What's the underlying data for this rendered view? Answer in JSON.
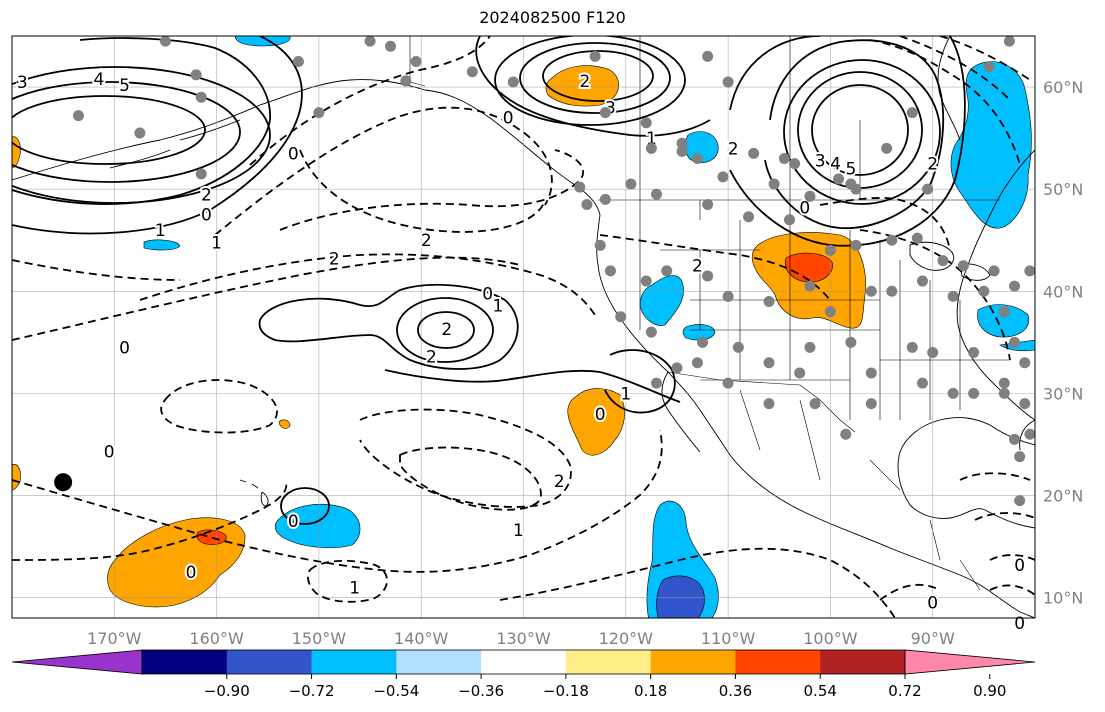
{
  "title": "2024082500 F120",
  "map": {
    "projection": "cylindrical",
    "lon_range": [
      -180,
      -80
    ],
    "lat_range": [
      8,
      65
    ],
    "lon_ticks": [
      {
        "lon": -170,
        "label": "170°W"
      },
      {
        "lon": -160,
        "label": "160°W"
      },
      {
        "lon": -150,
        "label": "150°W"
      },
      {
        "lon": -140,
        "label": "140°W"
      },
      {
        "lon": -130,
        "label": "130°W"
      },
      {
        "lon": -120,
        "label": "120°W"
      },
      {
        "lon": -110,
        "label": "110°W"
      },
      {
        "lon": -100,
        "label": "100°W"
      },
      {
        "lon": -90,
        "label": "90°W"
      }
    ],
    "lat_ticks": [
      {
        "lat": 10,
        "label": "10°N"
      },
      {
        "lat": 20,
        "label": "20°N"
      },
      {
        "lat": 30,
        "label": "30°N"
      },
      {
        "lat": 40,
        "label": "40°N"
      },
      {
        "lat": 50,
        "label": "50°N"
      },
      {
        "lat": 60,
        "label": "60°N"
      }
    ],
    "grid": true,
    "tick_label_color": "#808080"
  },
  "colorbar": {
    "extend": "both",
    "colors": [
      "#9933cc",
      "#000080",
      "#3355cc",
      "#00bfff",
      "#afe0ff",
      "#ffffff",
      "#ffee88",
      "#ffa500",
      "#ff4500",
      "#b22222",
      "#ff88aa"
    ],
    "tick_labels": [
      "−0.90",
      "−0.72",
      "−0.54",
      "−0.36",
      "−0.18",
      "0.18",
      "0.36",
      "0.54",
      "0.72",
      "0.90"
    ]
  },
  "contour_labels": [
    {
      "text": "3",
      "lon": -179,
      "lat": 60.5
    },
    {
      "text": "4",
      "lon": -171.5,
      "lat": 60.8
    },
    {
      "text": "5",
      "lon": -169,
      "lat": 60.2
    },
    {
      "text": "2",
      "lon": -161,
      "lat": 49.5
    },
    {
      "text": "1",
      "lon": -165.5,
      "lat": 46
    },
    {
      "text": "0",
      "lon": -161,
      "lat": 47.5
    },
    {
      "text": "1",
      "lon": -160,
      "lat": 44.8
    },
    {
      "text": "0",
      "lon": -152.5,
      "lat": 53.5
    },
    {
      "text": "0",
      "lon": -169,
      "lat": 34.5
    },
    {
      "text": "2",
      "lon": -139.5,
      "lat": 45
    },
    {
      "text": "2",
      "lon": -148.5,
      "lat": 43.2
    },
    {
      "text": "0",
      "lon": -133.5,
      "lat": 39.8
    },
    {
      "text": "1",
      "lon": -132.5,
      "lat": 38.6
    },
    {
      "text": "2",
      "lon": -137.5,
      "lat": 36.3
    },
    {
      "text": "2",
      "lon": -139,
      "lat": 33.6
    },
    {
      "text": "0",
      "lon": -131.5,
      "lat": 57
    },
    {
      "text": "2",
      "lon": -124,
      "lat": 60.6
    },
    {
      "text": "3",
      "lon": -121.5,
      "lat": 58
    },
    {
      "text": "1",
      "lon": -117.5,
      "lat": 55
    },
    {
      "text": "3",
      "lon": -101,
      "lat": 52.8
    },
    {
      "text": "4",
      "lon": -99.5,
      "lat": 52.5
    },
    {
      "text": "5",
      "lon": -98,
      "lat": 52
    },
    {
      "text": "2",
      "lon": -109.5,
      "lat": 54
    },
    {
      "text": "2",
      "lon": -90,
      "lat": 52.5
    },
    {
      "text": "0",
      "lon": -102.5,
      "lat": 48.2
    },
    {
      "text": "2",
      "lon": -113,
      "lat": 42.5
    },
    {
      "text": "1",
      "lon": -120,
      "lat": 30
    },
    {
      "text": "0",
      "lon": -122.5,
      "lat": 28
    },
    {
      "text": "0",
      "lon": -170.5,
      "lat": 24.3
    },
    {
      "text": "2",
      "lon": -126.5,
      "lat": 21.4
    },
    {
      "text": "1",
      "lon": -130.5,
      "lat": 16.6
    },
    {
      "text": "0",
      "lon": -162.5,
      "lat": 12.5
    },
    {
      "text": "0",
      "lon": -152.5,
      "lat": 17.5
    },
    {
      "text": "1",
      "lon": -146.5,
      "lat": 11
    },
    {
      "text": "0",
      "lon": -90,
      "lat": 9.5
    },
    {
      "text": "0",
      "lon": -81.5,
      "lat": 13.2
    },
    {
      "text": "0",
      "lon": -81.5,
      "lat": 7.5
    }
  ],
  "stations": [
    [
      -174,
      66
    ],
    [
      -165,
      64.5
    ],
    [
      -162,
      61.2
    ],
    [
      -161.5,
      59
    ],
    [
      -173.5,
      57.2
    ],
    [
      -167.5,
      55.5
    ],
    [
      -161.5,
      51.5
    ],
    [
      -152,
      62.5
    ],
    [
      -145,
      64.5
    ],
    [
      -143,
      64
    ],
    [
      -140.5,
      62.5
    ],
    [
      -135,
      61.5
    ],
    [
      -150,
      57.5
    ],
    [
      -141.5,
      60.6
    ],
    [
      -131,
      60.5
    ],
    [
      -125,
      65
    ],
    [
      -123,
      63
    ],
    [
      -122,
      57.5
    ],
    [
      -118,
      56.5
    ],
    [
      -111.5,
      65
    ],
    [
      -112,
      63
    ],
    [
      -110,
      60.5
    ],
    [
      -114.5,
      54.5
    ],
    [
      -113,
      53
    ],
    [
      -110.5,
      51.2
    ],
    [
      -107.5,
      53.5
    ],
    [
      -104.5,
      53
    ],
    [
      -103.5,
      52.5
    ],
    [
      -105.5,
      50.5
    ],
    [
      -102,
      49.3
    ],
    [
      -99.2,
      51
    ],
    [
      -98,
      50.5
    ],
    [
      -97.5,
      50
    ],
    [
      -94.5,
      54
    ],
    [
      -90.5,
      50
    ],
    [
      -92,
      57.5
    ],
    [
      -87.5,
      64.7
    ],
    [
      -84.5,
      62
    ],
    [
      -82.5,
      64.5
    ],
    [
      -117.5,
      54
    ],
    [
      -114.5,
      53.7
    ],
    [
      -122,
      49
    ],
    [
      -123.8,
      48.5
    ],
    [
      -124.5,
      50.2
    ],
    [
      -119.5,
      50.5
    ],
    [
      -117,
      49.5
    ],
    [
      -112,
      48.5
    ],
    [
      -108,
      47.3
    ],
    [
      -104,
      47
    ],
    [
      -100,
      44
    ],
    [
      -97.5,
      44.5
    ],
    [
      -94,
      45
    ],
    [
      -91.5,
      45.2
    ],
    [
      -89,
      43
    ],
    [
      -87,
      42.5
    ],
    [
      -84,
      42
    ],
    [
      -82,
      40.5
    ],
    [
      -80.5,
      42
    ],
    [
      -122.5,
      44.5
    ],
    [
      -121.5,
      42
    ],
    [
      -118,
      41
    ],
    [
      -116,
      42
    ],
    [
      -112,
      41.5
    ],
    [
      -110,
      39.5
    ],
    [
      -106,
      39
    ],
    [
      -102,
      40.5
    ],
    [
      -100,
      38
    ],
    [
      -96,
      40
    ],
    [
      -94,
      40
    ],
    [
      -91,
      41
    ],
    [
      -88,
      39.5
    ],
    [
      -85,
      40
    ],
    [
      -83,
      38
    ],
    [
      -120.5,
      37.5
    ],
    [
      -117.5,
      36
    ],
    [
      -112.5,
      35
    ],
    [
      -109,
      34.5
    ],
    [
      -106,
      33
    ],
    [
      -102,
      34.5
    ],
    [
      -98,
      35
    ],
    [
      -96,
      32
    ],
    [
      -92,
      34.5
    ],
    [
      -90,
      34
    ],
    [
      -86,
      34
    ],
    [
      -82,
      35
    ],
    [
      -81,
      33
    ],
    [
      -83,
      31
    ],
    [
      -86,
      30
    ],
    [
      -88,
      30
    ],
    [
      -91,
      31
    ],
    [
      -96,
      29
    ],
    [
      -98.5,
      26
    ],
    [
      -101.5,
      29
    ],
    [
      -103,
      32
    ],
    [
      -106,
      29
    ],
    [
      -110,
      31
    ],
    [
      -113,
      33
    ],
    [
      -115,
      32.5
    ],
    [
      -117,
      31
    ],
    [
      -80.5,
      26
    ],
    [
      -81.5,
      23.8
    ],
    [
      -81.5,
      19.5
    ],
    [
      -83,
      30
    ],
    [
      -81,
      29
    ],
    [
      -82,
      25.5
    ]
  ],
  "marker_big": {
    "lon": -175,
    "lat": 21.3
  }
}
